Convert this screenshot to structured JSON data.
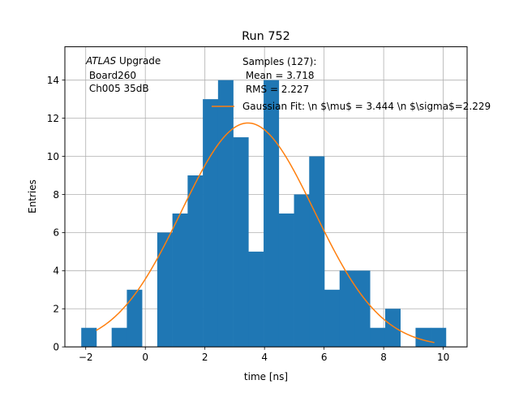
{
  "chart_data": {
    "type": "bar",
    "title": "Run 752",
    "xlabel": "time [ns]",
    "ylabel": "Entries",
    "xlim": [
      -2.7,
      10.8
    ],
    "ylim": [
      0,
      15.75
    ],
    "xticks": [
      -2,
      0,
      2,
      4,
      6,
      8,
      10
    ],
    "yticks": [
      0,
      2,
      4,
      6,
      8,
      10,
      12,
      14
    ],
    "grid": true,
    "colors": {
      "bars": "#1f77b4",
      "fit": "#ff7f0e",
      "grid": "#b0b0b0"
    },
    "histogram": {
      "bin_edges": [
        -2.15,
        -1.64,
        -1.13,
        -0.62,
        -0.11,
        0.4,
        0.91,
        1.42,
        1.93,
        2.44,
        2.95,
        3.46,
        3.97,
        4.48,
        4.99,
        5.5,
        6.01,
        6.52,
        7.03,
        7.54,
        8.05,
        8.56,
        9.07,
        9.58,
        10.09
      ],
      "values": [
        1,
        0,
        1,
        3,
        0,
        6,
        7,
        9,
        13,
        14,
        11,
        5,
        14,
        7,
        8,
        10,
        3,
        4,
        4,
        1,
        2,
        0,
        1,
        1
      ]
    },
    "fit_curve": {
      "name": "Gaussian Fit: \\n $\\mu$ = 3.444 \\n $\\sigma$=2.229",
      "mu": 3.444,
      "sigma": 2.229,
      "amplitude": 11.75,
      "x_range": [
        -1.65,
        9.7
      ]
    },
    "legend_location": "upper-right",
    "annotations": {
      "experiment": "ATLAS",
      "experiment_suffix": " Upgrade",
      "board": " Board260",
      "channel": " Ch005 35dB"
    },
    "stats": {
      "samples": "Samples (127):",
      "mean": " Mean = 3.718",
      "rms": " RMS = 2.227"
    }
  }
}
